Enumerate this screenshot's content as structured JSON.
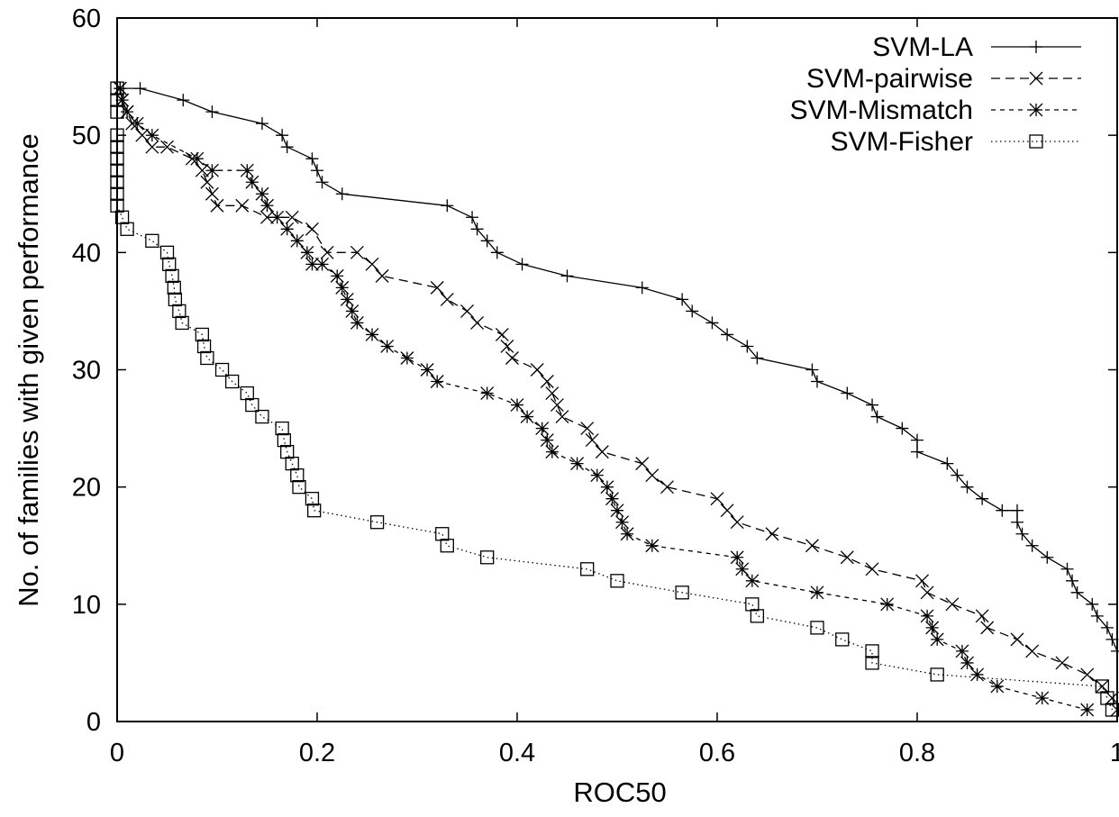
{
  "chart_data": {
    "type": "line",
    "title": "",
    "xlabel": "ROC50",
    "ylabel": "No. of families with given performance",
    "xlim": [
      0,
      1
    ],
    "ylim": [
      0,
      60
    ],
    "xticks": [
      "0",
      "0.2",
      "0.4",
      "0.6",
      "0.8",
      "1"
    ],
    "yticks": [
      "0",
      "10",
      "20",
      "30",
      "40",
      "50",
      "60"
    ],
    "grid": false,
    "legend_position": "top-right",
    "series": [
      {
        "name": "SVM-LA",
        "line_style": "solid",
        "marker": "plus",
        "points": [
          [
            0.003,
            54
          ],
          [
            0.023,
            54
          ],
          [
            0.066,
            53
          ],
          [
            0.095,
            52
          ],
          [
            0.145,
            51
          ],
          [
            0.165,
            50
          ],
          [
            0.17,
            49
          ],
          [
            0.195,
            48
          ],
          [
            0.2,
            47
          ],
          [
            0.205,
            46
          ],
          [
            0.225,
            45
          ],
          [
            0.33,
            44
          ],
          [
            0.355,
            43
          ],
          [
            0.36,
            42
          ],
          [
            0.37,
            41
          ],
          [
            0.38,
            40
          ],
          [
            0.405,
            39
          ],
          [
            0.45,
            38
          ],
          [
            0.525,
            37
          ],
          [
            0.565,
            36
          ],
          [
            0.575,
            35
          ],
          [
            0.595,
            34
          ],
          [
            0.61,
            33
          ],
          [
            0.63,
            32
          ],
          [
            0.64,
            31
          ],
          [
            0.695,
            30
          ],
          [
            0.7,
            29
          ],
          [
            0.73,
            28
          ],
          [
            0.755,
            27
          ],
          [
            0.76,
            26
          ],
          [
            0.785,
            25
          ],
          [
            0.8,
            24
          ],
          [
            0.8,
            23
          ],
          [
            0.83,
            22
          ],
          [
            0.84,
            21
          ],
          [
            0.85,
            20
          ],
          [
            0.865,
            19
          ],
          [
            0.885,
            18
          ],
          [
            0.9,
            18
          ],
          [
            0.9,
            17
          ],
          [
            0.905,
            16
          ],
          [
            0.915,
            15
          ],
          [
            0.93,
            14
          ],
          [
            0.95,
            13
          ],
          [
            0.955,
            12
          ],
          [
            0.96,
            11
          ],
          [
            0.975,
            10
          ],
          [
            0.98,
            9
          ],
          [
            0.99,
            8
          ],
          [
            0.995,
            7
          ],
          [
            1.0,
            6
          ]
        ]
      },
      {
        "name": "SVM-pairwise",
        "line_style": "dashed",
        "marker": "x",
        "points": [
          [
            0.003,
            54
          ],
          [
            0.005,
            53
          ],
          [
            0.01,
            52
          ],
          [
            0.015,
            51
          ],
          [
            0.025,
            50
          ],
          [
            0.035,
            49
          ],
          [
            0.05,
            49
          ],
          [
            0.075,
            48
          ],
          [
            0.085,
            47
          ],
          [
            0.09,
            46
          ],
          [
            0.095,
            45
          ],
          [
            0.1,
            44
          ],
          [
            0.125,
            44
          ],
          [
            0.15,
            43
          ],
          [
            0.175,
            43
          ],
          [
            0.195,
            42
          ],
          [
            0.21,
            40
          ],
          [
            0.24,
            40
          ],
          [
            0.255,
            39
          ],
          [
            0.265,
            38
          ],
          [
            0.32,
            37
          ],
          [
            0.33,
            36
          ],
          [
            0.35,
            35
          ],
          [
            0.36,
            34
          ],
          [
            0.385,
            33
          ],
          [
            0.39,
            32
          ],
          [
            0.395,
            31
          ],
          [
            0.42,
            30
          ],
          [
            0.43,
            29
          ],
          [
            0.435,
            28
          ],
          [
            0.44,
            27
          ],
          [
            0.445,
            26
          ],
          [
            0.47,
            25
          ],
          [
            0.475,
            24
          ],
          [
            0.485,
            23
          ],
          [
            0.525,
            22
          ],
          [
            0.535,
            21
          ],
          [
            0.55,
            20
          ],
          [
            0.6,
            19
          ],
          [
            0.61,
            18
          ],
          [
            0.62,
            17
          ],
          [
            0.655,
            16
          ],
          [
            0.695,
            15
          ],
          [
            0.73,
            14
          ],
          [
            0.755,
            13
          ],
          [
            0.805,
            12
          ],
          [
            0.81,
            11
          ],
          [
            0.835,
            10
          ],
          [
            0.865,
            9
          ],
          [
            0.87,
            8
          ],
          [
            0.9,
            7
          ],
          [
            0.915,
            6
          ],
          [
            0.945,
            5
          ],
          [
            0.97,
            4
          ],
          [
            0.985,
            3
          ],
          [
            0.995,
            2
          ],
          [
            1.0,
            1
          ]
        ]
      },
      {
        "name": "SVM-Mismatch",
        "line_style": "short-dashed",
        "marker": "star",
        "points": [
          [
            0.003,
            54
          ],
          [
            0.005,
            53
          ],
          [
            0.01,
            52
          ],
          [
            0.02,
            51
          ],
          [
            0.035,
            50
          ],
          [
            0.08,
            48
          ],
          [
            0.095,
            47
          ],
          [
            0.13,
            47
          ],
          [
            0.135,
            46
          ],
          [
            0.145,
            45
          ],
          [
            0.15,
            44
          ],
          [
            0.16,
            43
          ],
          [
            0.17,
            42
          ],
          [
            0.18,
            41
          ],
          [
            0.19,
            40
          ],
          [
            0.195,
            39
          ],
          [
            0.205,
            39
          ],
          [
            0.22,
            38
          ],
          [
            0.225,
            37
          ],
          [
            0.23,
            36
          ],
          [
            0.235,
            35
          ],
          [
            0.24,
            34
          ],
          [
            0.255,
            33
          ],
          [
            0.27,
            32
          ],
          [
            0.29,
            31
          ],
          [
            0.31,
            30
          ],
          [
            0.32,
            29
          ],
          [
            0.37,
            28
          ],
          [
            0.4,
            27
          ],
          [
            0.41,
            26
          ],
          [
            0.425,
            25
          ],
          [
            0.43,
            24
          ],
          [
            0.435,
            23
          ],
          [
            0.46,
            22
          ],
          [
            0.48,
            21
          ],
          [
            0.49,
            20
          ],
          [
            0.495,
            19
          ],
          [
            0.5,
            18
          ],
          [
            0.505,
            17
          ],
          [
            0.51,
            16
          ],
          [
            0.535,
            15
          ],
          [
            0.62,
            14
          ],
          [
            0.625,
            13
          ],
          [
            0.635,
            12
          ],
          [
            0.7,
            11
          ],
          [
            0.77,
            10
          ],
          [
            0.81,
            9
          ],
          [
            0.815,
            8
          ],
          [
            0.82,
            7
          ],
          [
            0.845,
            6
          ],
          [
            0.85,
            5
          ],
          [
            0.86,
            4
          ],
          [
            0.88,
            3
          ],
          [
            0.925,
            2
          ],
          [
            0.97,
            1
          ]
        ]
      },
      {
        "name": "SVM-Fisher",
        "line_style": "dotted",
        "marker": "square",
        "points": [
          [
            0.0,
            54
          ],
          [
            0.0,
            53
          ],
          [
            0.0,
            52
          ],
          [
            0.0,
            50
          ],
          [
            0.0,
            49
          ],
          [
            0.0,
            48
          ],
          [
            0.0,
            47
          ],
          [
            0.0,
            46
          ],
          [
            0.0,
            45
          ],
          [
            0.0,
            44
          ],
          [
            0.005,
            43
          ],
          [
            0.01,
            42
          ],
          [
            0.035,
            41
          ],
          [
            0.05,
            40
          ],
          [
            0.052,
            39
          ],
          [
            0.055,
            38
          ],
          [
            0.057,
            37
          ],
          [
            0.058,
            36
          ],
          [
            0.062,
            35
          ],
          [
            0.065,
            34
          ],
          [
            0.085,
            33
          ],
          [
            0.087,
            32
          ],
          [
            0.09,
            31
          ],
          [
            0.105,
            30
          ],
          [
            0.115,
            29
          ],
          [
            0.13,
            28
          ],
          [
            0.135,
            27
          ],
          [
            0.145,
            26
          ],
          [
            0.165,
            25
          ],
          [
            0.167,
            24
          ],
          [
            0.17,
            23
          ],
          [
            0.175,
            22
          ],
          [
            0.18,
            21
          ],
          [
            0.182,
            20
          ],
          [
            0.195,
            19
          ],
          [
            0.197,
            18
          ],
          [
            0.26,
            17
          ],
          [
            0.325,
            16
          ],
          [
            0.33,
            15
          ],
          [
            0.37,
            14
          ],
          [
            0.47,
            13
          ],
          [
            0.5,
            12
          ],
          [
            0.565,
            11
          ],
          [
            0.635,
            10
          ],
          [
            0.64,
            9
          ],
          [
            0.7,
            8
          ],
          [
            0.725,
            7
          ],
          [
            0.755,
            6
          ],
          [
            0.755,
            5
          ],
          [
            0.82,
            4
          ],
          [
            0.985,
            3
          ],
          [
            0.99,
            2
          ],
          [
            0.995,
            1
          ]
        ]
      }
    ]
  }
}
